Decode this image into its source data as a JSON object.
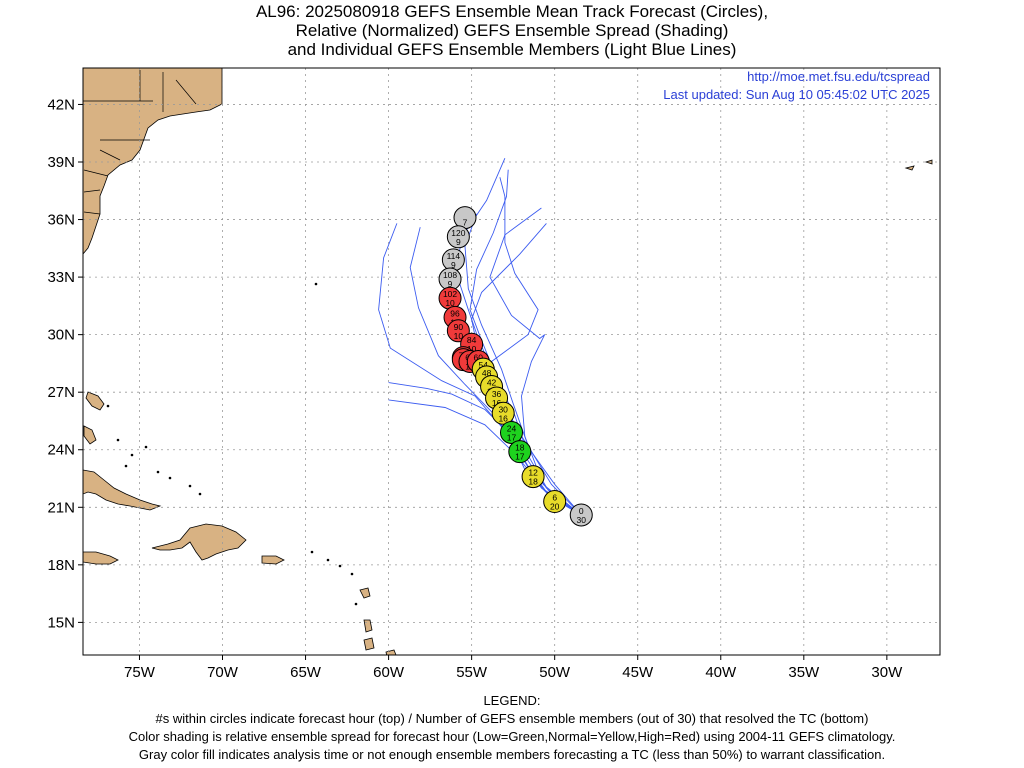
{
  "title": {
    "line1": "AL96: 2025080918 GEFS Ensemble Mean Track Forecast (Circles),",
    "line2": "Relative (Normalized) GEFS Ensemble Spread (Shading)",
    "line3": "and Individual GEFS Ensemble Members (Light Blue Lines)"
  },
  "source": {
    "url": "http://moe.met.fsu.edu/tcspread",
    "updated": "Last updated: Sun Aug 10 05:45:02 UTC 2025"
  },
  "axes": {
    "lon_labels": [
      "75W",
      "70W",
      "65W",
      "60W",
      "55W",
      "50W",
      "45W",
      "40W",
      "35W",
      "30W"
    ],
    "lat_labels": [
      "42N",
      "39N",
      "36N",
      "33N",
      "30N",
      "27N",
      "24N",
      "21N",
      "18N",
      "15N"
    ],
    "lon_range": [
      -78.4,
      -26.8
    ],
    "lat_range": [
      13.3,
      43.9
    ]
  },
  "legend": {
    "heading": "LEGEND:",
    "line1": "#s within circles indicate forecast hour (top) / Number of GEFS ensemble members (out of 30) that resolved the TC (bottom)",
    "line2": "Color shading is relative ensemble spread for forecast hour (Low=Green,Normal=Yellow,High=Red) using 2004-11 GEFS climatology.",
    "line3": "Gray color fill indicates analysis time or not enough ensemble members forecasting a TC (less than 50%) to warrant classification."
  },
  "colors": {
    "gray": "#c8c8c8",
    "yellow": "#e8dc2a",
    "green": "#1ed21e",
    "red": "#f03a3a",
    "member_line": "#3c5cf0",
    "land": "#d8b283",
    "grid": "#9a9a9a"
  },
  "track": [
    {
      "hour": "0",
      "members": "30",
      "lon": -48.4,
      "lat": 20.6,
      "color": "gray"
    },
    {
      "hour": "6",
      "members": "20",
      "lon": -50.0,
      "lat": 21.3,
      "color": "yellow"
    },
    {
      "hour": "12",
      "members": "18",
      "lon": -51.3,
      "lat": 22.6,
      "color": "yellow"
    },
    {
      "hour": "18",
      "members": "17",
      "lon": -52.1,
      "lat": 23.9,
      "color": "green"
    },
    {
      "hour": "24",
      "members": "17",
      "lon": -52.6,
      "lat": 24.9,
      "color": "green"
    },
    {
      "hour": "30",
      "members": "16",
      "lon": -53.1,
      "lat": 25.9,
      "color": "yellow"
    },
    {
      "hour": "36",
      "members": "16",
      "lon": -53.5,
      "lat": 26.7,
      "color": "yellow"
    },
    {
      "hour": "42",
      "members": "16",
      "lon": -53.8,
      "lat": 27.3,
      "color": "yellow"
    },
    {
      "hour": "48",
      "members": "15",
      "lon": -54.1,
      "lat": 27.8,
      "color": "yellow"
    },
    {
      "hour": "54",
      "members": "14",
      "lon": -54.3,
      "lat": 28.2,
      "color": "yellow"
    },
    {
      "hour": "60",
      "members": "14",
      "lon": -54.6,
      "lat": 28.6,
      "color": "red"
    },
    {
      "hour": "66",
      "members": "14",
      "lon": -55.1,
      "lat": 28.6,
      "color": "red"
    },
    {
      "hour": "72",
      "members": "14",
      "lon": -55.5,
      "lat": 28.7,
      "color": "red"
    },
    {
      "hour": "78",
      "members": "14",
      "lon": -55.5,
      "lat": 28.8,
      "color": "red"
    },
    {
      "hour": "84",
      "members": "10",
      "lon": -55.0,
      "lat": 29.5,
      "color": "red"
    },
    {
      "hour": "90",
      "members": "10",
      "lon": -55.8,
      "lat": 30.2,
      "color": "red"
    },
    {
      "hour": "96",
      "members": "10",
      "lon": -56.0,
      "lat": 30.9,
      "color": "red"
    },
    {
      "hour": "102",
      "members": "10",
      "lon": -56.3,
      "lat": 31.9,
      "color": "red"
    },
    {
      "hour": "108",
      "members": "9",
      "lon": -56.3,
      "lat": 32.9,
      "color": "gray"
    },
    {
      "hour": "114",
      "members": "9",
      "lon": -56.1,
      "lat": 33.9,
      "color": "gray"
    },
    {
      "hour": "120",
      "members": "9",
      "lon": -55.8,
      "lat": 35.1,
      "color": "gray"
    },
    {
      "hour": "",
      "members": "7",
      "lon": -55.4,
      "lat": 36.1,
      "color": "gray"
    }
  ],
  "members": [
    [
      [
        -48.4,
        20.6
      ],
      [
        -50.5,
        21.8
      ],
      [
        -52.0,
        23.6
      ],
      [
        -53.2,
        25.2
      ],
      [
        -54.8,
        26.8
      ],
      [
        -56.8,
        27.6
      ],
      [
        -59.9,
        29.3
      ],
      [
        -60.6,
        31.3
      ],
      [
        -60.3,
        34.0
      ],
      [
        -59.5,
        35.8
      ]
    ],
    [
      [
        -48.4,
        20.6
      ],
      [
        -50.6,
        21.9
      ],
      [
        -52.4,
        23.8
      ],
      [
        -54.2,
        25.3
      ],
      [
        -56.6,
        26.2
      ],
      [
        -60.0,
        26.6
      ]
    ],
    [
      [
        -48.4,
        20.6
      ],
      [
        -50.8,
        22.0
      ],
      [
        -52.2,
        24.0
      ],
      [
        -53.6,
        25.8
      ],
      [
        -55.4,
        27.4
      ],
      [
        -57.0,
        28.9
      ],
      [
        -58.2,
        31.4
      ],
      [
        -58.7,
        33.5
      ],
      [
        -58.1,
        35.6
      ]
    ],
    [
      [
        -48.4,
        20.6
      ],
      [
        -50.2,
        22.2
      ],
      [
        -51.6,
        24.2
      ],
      [
        -52.5,
        26.4
      ],
      [
        -53.2,
        28.2
      ],
      [
        -54.4,
        30.5
      ],
      [
        -55.2,
        32.4
      ],
      [
        -55.4,
        34.6
      ],
      [
        -54.7,
        36.3
      ]
    ],
    [
      [
        -48.4,
        20.6
      ],
      [
        -50.7,
        22.2
      ],
      [
        -51.8,
        24.7
      ],
      [
        -52.0,
        26.8
      ],
      [
        -51.4,
        28.6
      ],
      [
        -50.6,
        30.0
      ],
      [
        -50.9,
        29.8
      ],
      [
        -52.6,
        31.0
      ],
      [
        -53.9,
        33.0
      ],
      [
        -53.0,
        35.2
      ],
      [
        -50.8,
        36.6
      ]
    ],
    [
      [
        -48.4,
        20.6
      ],
      [
        -50.0,
        22.2
      ],
      [
        -51.5,
        24.0
      ],
      [
        -52.6,
        25.6
      ],
      [
        -53.6,
        26.7
      ],
      [
        -54.4,
        27.8
      ],
      [
        -53.8,
        28.6
      ],
      [
        -51.6,
        30.0
      ],
      [
        -51.0,
        31.3
      ],
      [
        -52.4,
        33.2
      ],
      [
        -53.0,
        34.8
      ],
      [
        -53.0,
        37.2
      ],
      [
        -53.3,
        38.2
      ]
    ],
    [
      [
        -48.4,
        20.6
      ],
      [
        -50.3,
        21.6
      ],
      [
        -51.7,
        22.8
      ],
      [
        -52.9,
        25.0
      ],
      [
        -54.2,
        26.1
      ],
      [
        -56.2,
        26.9
      ],
      [
        -57.7,
        27.2
      ],
      [
        -60.0,
        27.5
      ]
    ],
    [
      [
        -48.4,
        20.6
      ],
      [
        -50.5,
        22.0
      ],
      [
        -52.2,
        24.2
      ],
      [
        -53.2,
        26.3
      ],
      [
        -53.6,
        28.0
      ],
      [
        -54.4,
        29.7
      ],
      [
        -55.1,
        31.3
      ],
      [
        -54.7,
        33.4
      ],
      [
        -53.7,
        35.3
      ],
      [
        -52.9,
        37.2
      ],
      [
        -52.8,
        38.6
      ]
    ],
    [
      [
        -48.4,
        20.6
      ],
      [
        -50.4,
        21.9
      ],
      [
        -51.6,
        23.7
      ],
      [
        -52.4,
        25.8
      ],
      [
        -53.6,
        27.8
      ],
      [
        -54.6,
        29.8
      ],
      [
        -55.2,
        31.3
      ],
      [
        -56.0,
        33.4
      ],
      [
        -55.5,
        35.2
      ],
      [
        -54.1,
        37.0
      ],
      [
        -53.0,
        39.2
      ]
    ],
    [
      [
        -48.4,
        20.6
      ],
      [
        -50.2,
        21.5
      ],
      [
        -51.2,
        22.4
      ],
      [
        -51.8,
        23.4
      ],
      [
        -52.1,
        24.8
      ],
      [
        -52.8,
        26.0
      ],
      [
        -53.6,
        27.8
      ],
      [
        -54.6,
        29.1
      ],
      [
        -55.0,
        30.8
      ],
      [
        -54.4,
        32.2
      ],
      [
        -52.1,
        34.2
      ],
      [
        -50.5,
        35.8
      ]
    ]
  ]
}
